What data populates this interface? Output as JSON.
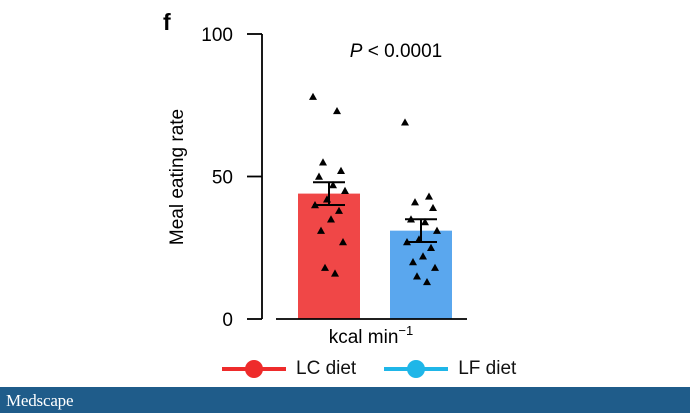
{
  "panel_label": "f",
  "chart_data": {
    "type": "bar",
    "title": "",
    "annotation": "P < 0.0001",
    "annotation_prefix": "P",
    "annotation_rest": " < 0.0001",
    "ylabel": "Meal eating rate",
    "xlabel": "kcal min",
    "xlabel_exponent": "−1",
    "ylim": [
      0,
      100
    ],
    "yticks": [
      0,
      50,
      100
    ],
    "ytick_labels": [
      "0",
      "50",
      "100"
    ],
    "categories": [
      "LC diet",
      "LF diet"
    ],
    "values": [
      44,
      31
    ],
    "errors": [
      {
        "low": 40,
        "high": 48
      },
      {
        "low": 27,
        "high": 35
      }
    ],
    "colors": [
      "#f04747",
      "#5aa7ee"
    ],
    "points": [
      [
        78,
        73,
        55,
        52,
        50,
        47,
        45,
        42,
        40,
        38,
        35,
        31,
        27,
        18,
        16
      ],
      [
        69,
        43,
        41,
        39,
        35,
        34,
        31,
        28,
        27,
        25,
        22,
        20,
        18,
        15,
        13
      ]
    ]
  },
  "legend": {
    "items": [
      {
        "label": "LC diet",
        "color": "#ee2b2b"
      },
      {
        "label": "LF diet",
        "color": "#1fb6e8"
      }
    ]
  },
  "footer": {
    "brand": "Medscape",
    "color": "#1f5c8a"
  }
}
